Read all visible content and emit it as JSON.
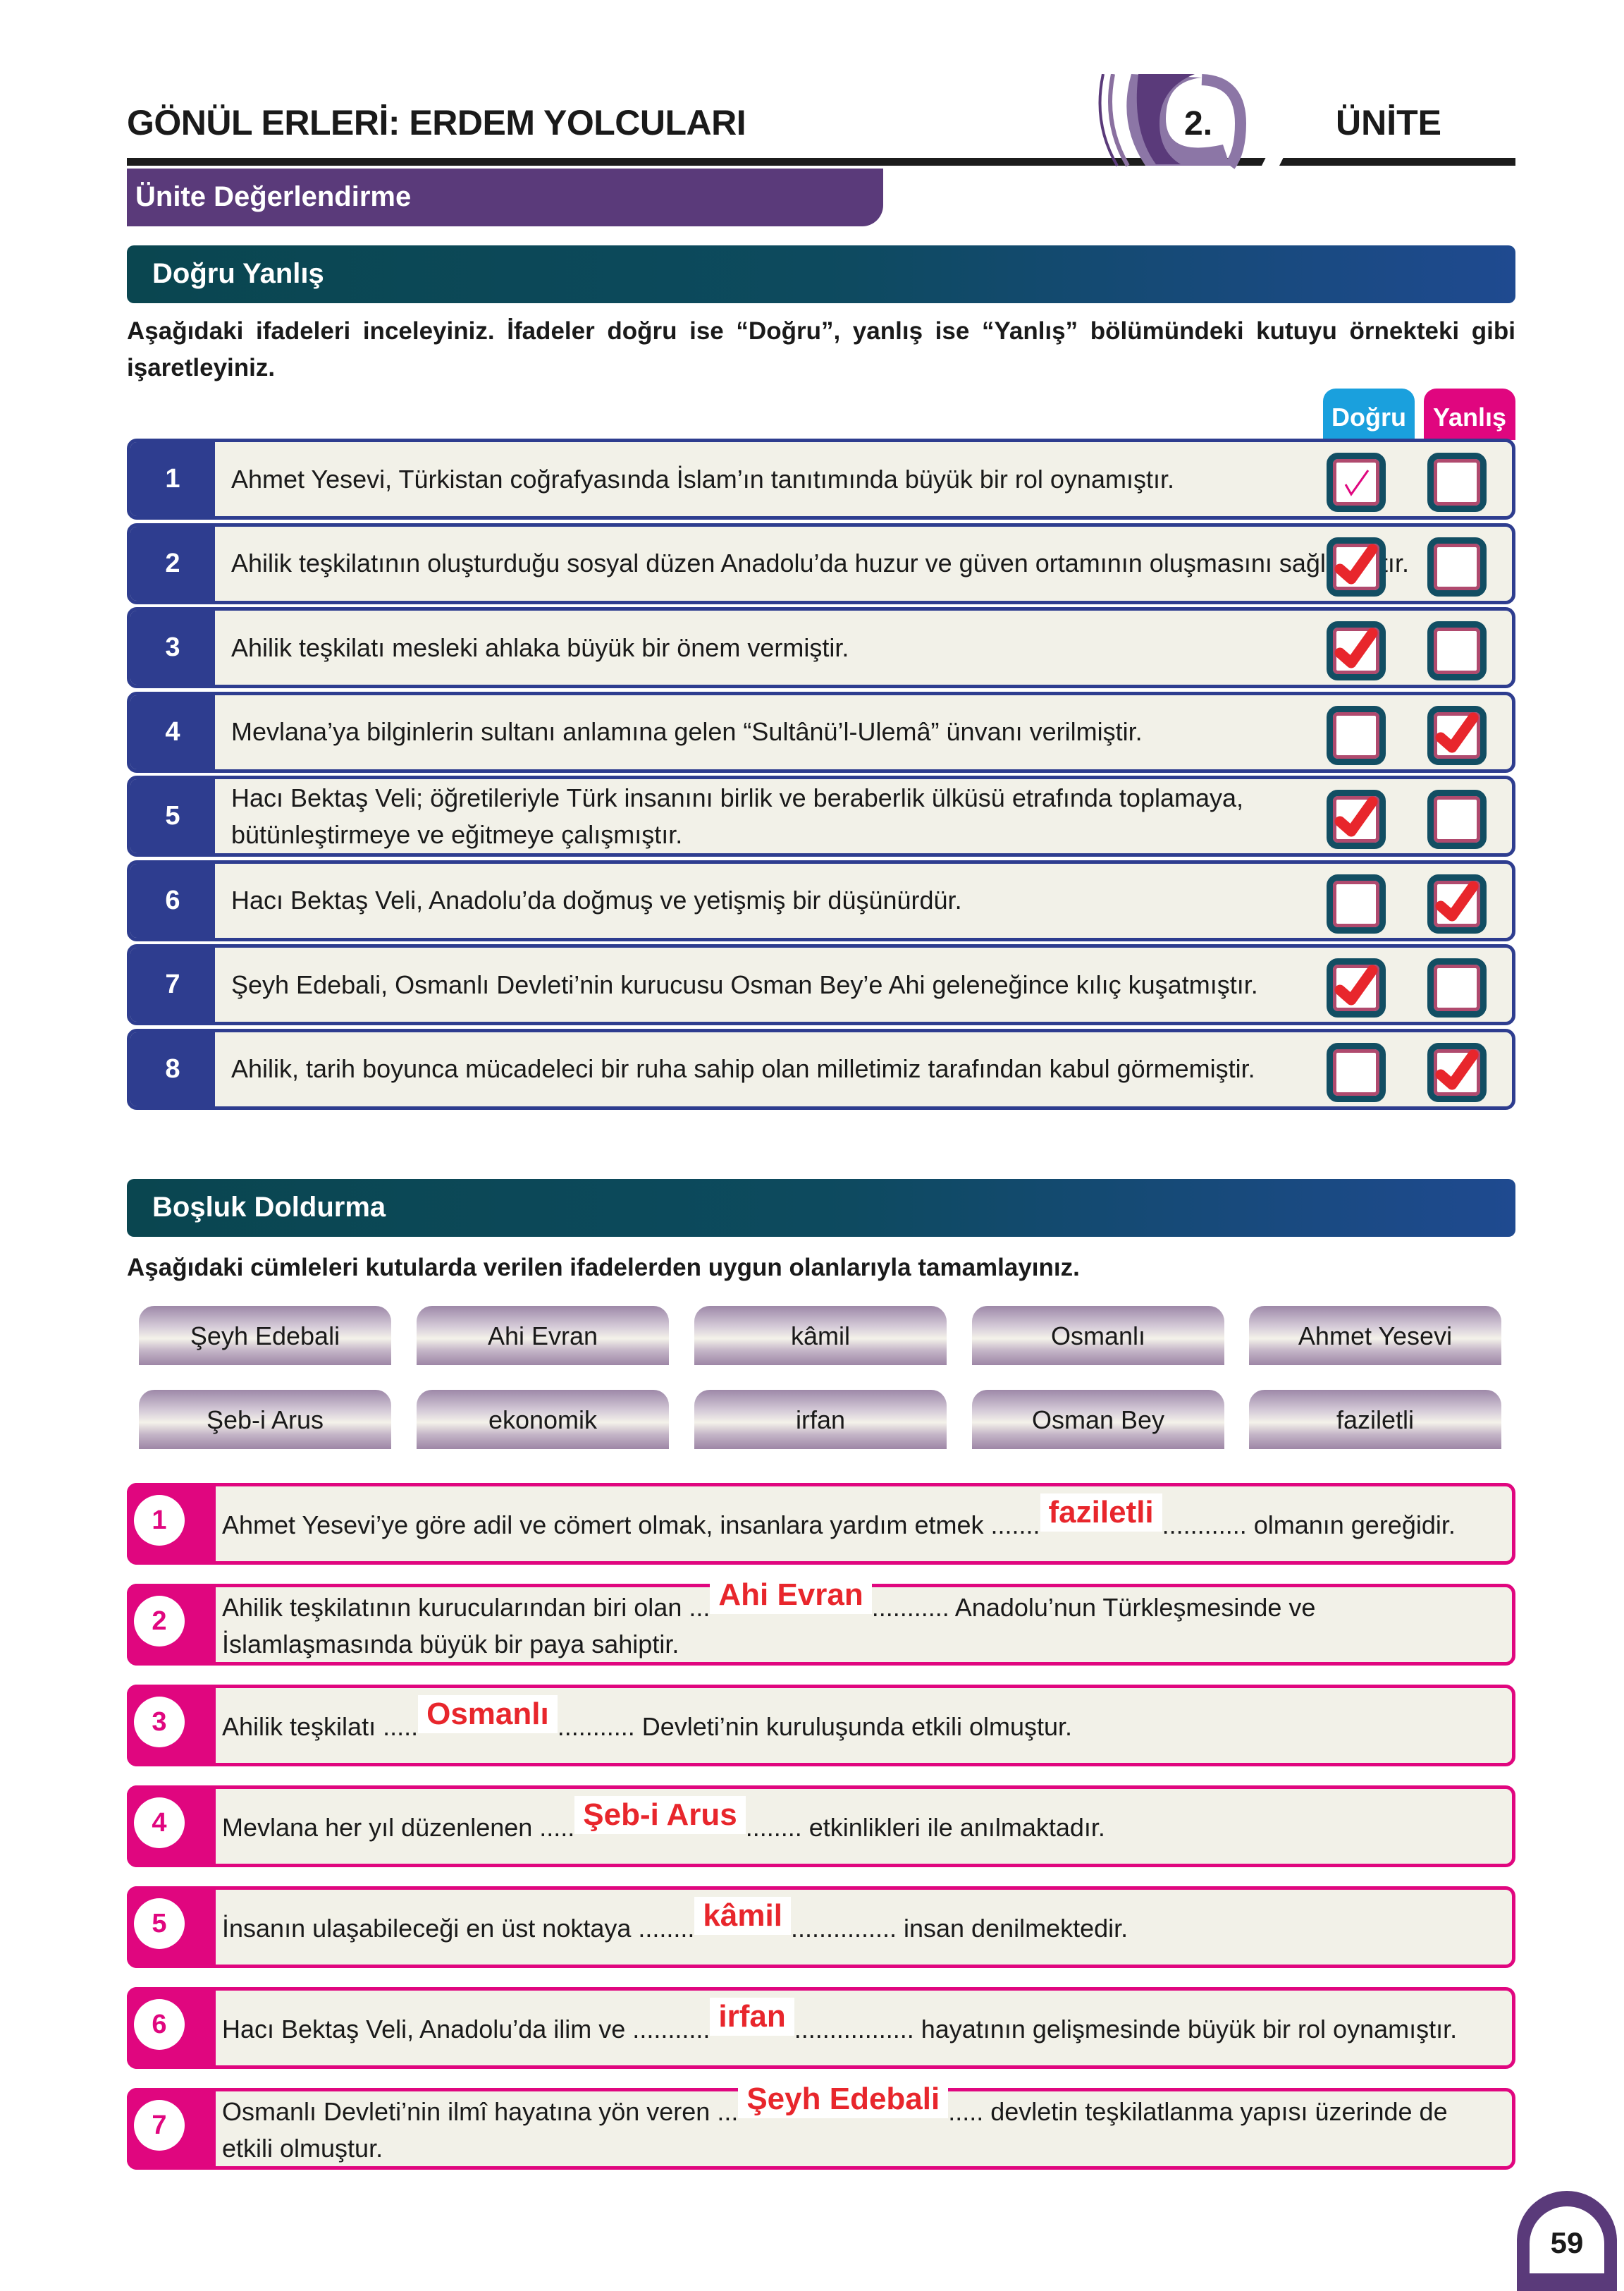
{
  "header": {
    "title": "GÖNÜL ERLERİ: ERDEM YOLCULARI",
    "unit_number": "2.",
    "unit_label": "ÜNİTE",
    "subtitle": "Ünite Değerlendirme"
  },
  "colors": {
    "purple": "#5a3a7a",
    "navy": "#2e3d8f",
    "pink": "#e0067f",
    "cyan": "#1aa0dd",
    "answer_red": "#e8262c",
    "cream": "#f2f1e8"
  },
  "true_false": {
    "heading": "Doğru Yanlış",
    "instruction": "Aşağıdaki ifadeleri inceleyiniz. İfadeler doğru ise “Doğru”, yanlış ise “Yanlış” bölümündeki kutuyu örnekteki gibi işaretleyiniz.",
    "col_true": "Doğru",
    "col_false": "Yanlış",
    "items": [
      {
        "num": "1",
        "text": "Ahmet Yesevi, Türkistan coğrafyasında İslam’ın tanıtımında büyük bir rol oynamıştır.",
        "answer": "dogru",
        "example": true
      },
      {
        "num": "2",
        "text": "Ahilik teşkilatının oluşturduğu sosyal düzen Anadolu’da huzur ve güven ortamının oluşmasını sağlamıştır.",
        "answer": "dogru"
      },
      {
        "num": "3",
        "text": "Ahilik teşkilatı mesleki ahlaka büyük bir önem vermiştir.",
        "answer": "dogru"
      },
      {
        "num": "4",
        "text": "Mevlana’ya bilginlerin sultanı anlamına gelen “Sultânü’l-Ulemâ” ünvanı verilmiştir.",
        "answer": "yanlis"
      },
      {
        "num": "5",
        "text": "Hacı Bektaş Veli; öğretileriyle Türk insanını birlik ve beraberlik ülküsü etrafında toplamaya, bütünleştirmeye ve eğitmeye çalışmıştır.",
        "answer": "dogru"
      },
      {
        "num": "6",
        "text": "Hacı Bektaş Veli, Anadolu’da doğmuş ve yetişmiş bir düşünürdür.",
        "answer": "yanlis"
      },
      {
        "num": "7",
        "text": "Şeyh Edebali, Osmanlı Devleti’nin kurucusu Osman Bey’e Ahi geleneğince kılıç kuşatmıştır.",
        "answer": "dogru"
      },
      {
        "num": "8",
        "text": "Ahilik, tarih boyunca mücadeleci bir ruha sahip olan milletimiz tarafından kabul görmemiştir.",
        "answer": "yanlis"
      }
    ]
  },
  "fill_blank": {
    "heading": "Boşluk Doldurma",
    "instruction": "Aşağıdaki cümleleri kutularda verilen ifadelerden uygun olanlarıyla tamamlayınız.",
    "word_bank": [
      "Şeyh Edebali",
      "Ahi Evran",
      "kâmil",
      "Osmanlı",
      "Ahmet Yesevi",
      "Şeb-i Arus",
      "ekonomik",
      "irfan",
      "Osman Bey",
      "faziletli"
    ],
    "items": [
      {
        "num": "1",
        "before": "Ahmet Yesevi’ye göre adil ve cömert olmak, insanlara yardım etmek .......",
        "answer": "faziletli",
        "after": "............ olmanın gereğidir."
      },
      {
        "num": "2",
        "before": "Ahilik teşkilatının kurucularından biri olan ...",
        "answer": "Ahi Evran",
        "after": "........... Anadolu’nun Türkleşmesinde ve İslamlaşmasında büyük bir paya sahiptir."
      },
      {
        "num": "3",
        "before": "Ahilik teşkilatı .....",
        "answer": "Osmanlı",
        "after": "........... Devleti’nin kuruluşunda etkili olmuştur."
      },
      {
        "num": "4",
        "before": "Mevlana her yıl düzenlenen .....",
        "answer": "Şeb-i Arus",
        "after": "........ etkinlikleri ile anılmaktadır."
      },
      {
        "num": "5",
        "before": "İnsanın ulaşabileceği en üst noktaya ........",
        "answer": "kâmil",
        "after": "............... insan denilmektedir."
      },
      {
        "num": "6",
        "before": "Hacı Bektaş Veli, Anadolu’da ilim ve ...........",
        "answer": "irfan",
        "after": "................. hayatının gelişmesinde büyük bir rol oynamıştır."
      },
      {
        "num": "7",
        "before": "Osmanlı Devleti’nin ilmî hayatına yön veren ...",
        "answer": "Şeyh Edebali",
        "after": ".....   devletin teşkilatlanma yapısı üzerinde de etkili olmuştur."
      }
    ]
  },
  "page_number": "59"
}
